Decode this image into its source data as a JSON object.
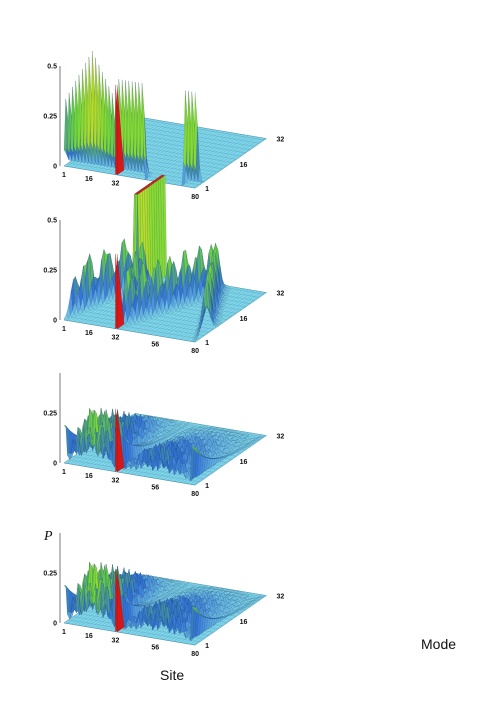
{
  "chart_data": [
    {
      "type": "surface3d",
      "panel": 1,
      "axes": {
        "site": {
          "ticks": [
            "1",
            "16",
            "32",
            "56",
            "80"
          ],
          "range": [
            1,
            80
          ]
        },
        "mode": {
          "ticks": [
            "1",
            "16",
            "32"
          ],
          "range": [
            1,
            32
          ]
        },
        "p": {
          "ticks": [
            "0",
            "0.25",
            "0.5"
          ],
          "range": [
            0,
            0.5
          ]
        }
      },
      "site_gaps": [
        32
      ],
      "profile": "sawtooth-edge",
      "peak_p": 0.6
    },
    {
      "type": "surface3d",
      "panel": 2,
      "axes": {
        "site": {
          "ticks": [
            "1",
            "16",
            "32",
            "56",
            "80"
          ],
          "range": [
            1,
            80
          ]
        },
        "mode": {
          "ticks": [
            "1",
            "16",
            "32"
          ],
          "range": [
            1,
            32
          ]
        },
        "p": {
          "ticks": [
            "0",
            "0.25",
            "0.5"
          ],
          "range": [
            0,
            0.5
          ]
        }
      },
      "site_gaps": [
        32
      ],
      "profile": "v-ridge",
      "peak_p": 0.5
    },
    {
      "type": "surface3d",
      "panel": 3,
      "axes": {
        "site": {
          "ticks": [
            "1",
            "16",
            "32",
            "56",
            "80"
          ],
          "range": [
            1,
            80
          ]
        },
        "mode": {
          "ticks": [
            "1",
            "16",
            "32"
          ],
          "range": [
            1,
            32
          ]
        },
        "p": {
          "ticks": [
            "0",
            "0.25"
          ],
          "range": [
            0,
            0.45
          ]
        }
      },
      "site_gaps": [
        32
      ],
      "profile": "dome",
      "peak_p": 0.42
    },
    {
      "type": "surface3d",
      "panel": 4,
      "axes": {
        "site": {
          "ticks": [
            "1",
            "16",
            "32",
            "56",
            "80"
          ],
          "range": [
            1,
            80
          ]
        },
        "mode": {
          "ticks": [
            "1",
            "16",
            "32"
          ],
          "range": [
            1,
            32
          ]
        },
        "p": {
          "ticks": [
            "0",
            "0.25"
          ],
          "range": [
            0,
            0.45
          ]
        }
      },
      "site_gaps": [
        32
      ],
      "profile": "dome-wide",
      "peak_p": 0.42
    }
  ],
  "labels": {
    "p_axis": "P",
    "site_axis": "Site",
    "mode_axis": "Mode"
  },
  "colors": {
    "low": "#7fd6ea",
    "mid": "#2f6fd6",
    "green": "#6fd93a",
    "yellow": "#f0e020",
    "peak": "#d81818",
    "plane_line": "#4b8fa8"
  }
}
